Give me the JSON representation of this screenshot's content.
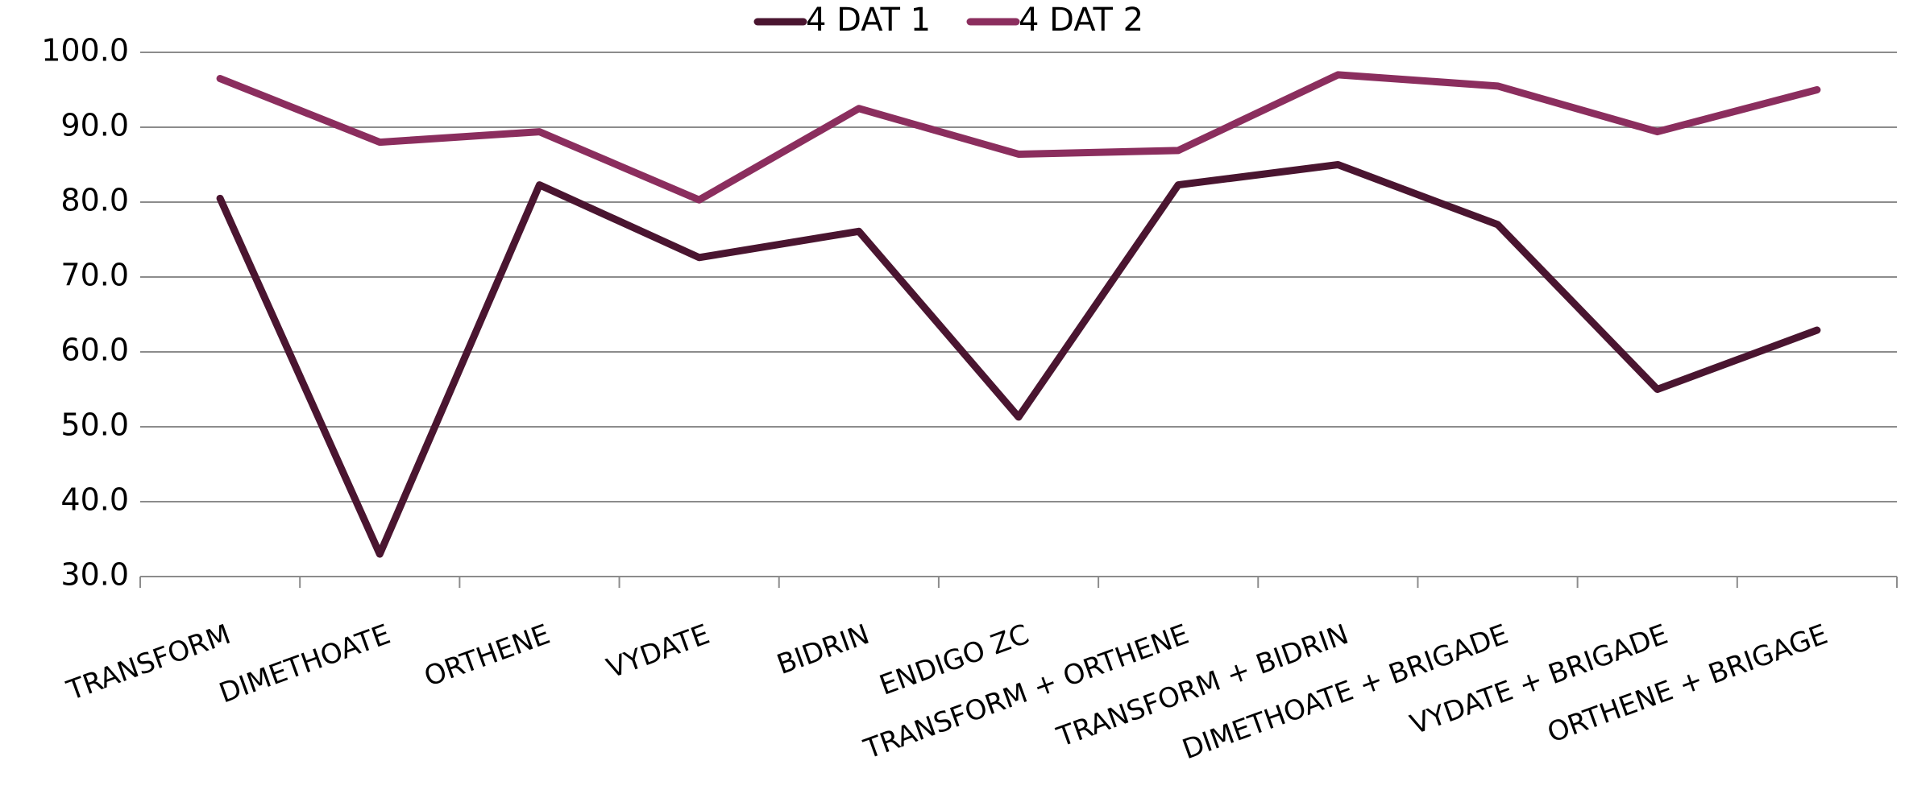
{
  "chart_data": {
    "type": "line",
    "categories": [
      "TRANSFORM",
      "DIMETHOATE",
      "ORTHENE",
      "VYDATE",
      "BIDRIN",
      "ENDIGO ZC",
      "TRANSFORM + ORTHENE",
      "TRANSFORM + BIDRIN",
      "DIMETHOATE + BRIGADE",
      "VYDATE + BRIGADE",
      "ORTHENE + BRIGAGE"
    ],
    "series": [
      {
        "name": "4 DAT 1",
        "color": "#4a1530",
        "values": [
          80.5,
          33,
          82.3,
          72.6,
          76.1,
          51.3,
          82.3,
          85,
          77,
          55,
          62.9
        ]
      },
      {
        "name": "4 DAT 2",
        "color": "#8b2e5e",
        "values": [
          96.5,
          88,
          89.4,
          80.3,
          92.5,
          86.4,
          86.9,
          97,
          95.5,
          89.4,
          95
        ]
      }
    ],
    "ylim": [
      30,
      100
    ],
    "yticks": [
      {
        "value": 30,
        "label": "30.0"
      },
      {
        "value": 40,
        "label": "40.0"
      },
      {
        "value": 50,
        "label": "50.0"
      },
      {
        "value": 60,
        "label": "60.0"
      },
      {
        "value": 70,
        "label": "70.0"
      },
      {
        "value": 80,
        "label": "80.0"
      },
      {
        "value": 90,
        "label": "90.0"
      },
      {
        "value": 100,
        "label": "100.0"
      }
    ],
    "grid": true,
    "legend": "top"
  }
}
